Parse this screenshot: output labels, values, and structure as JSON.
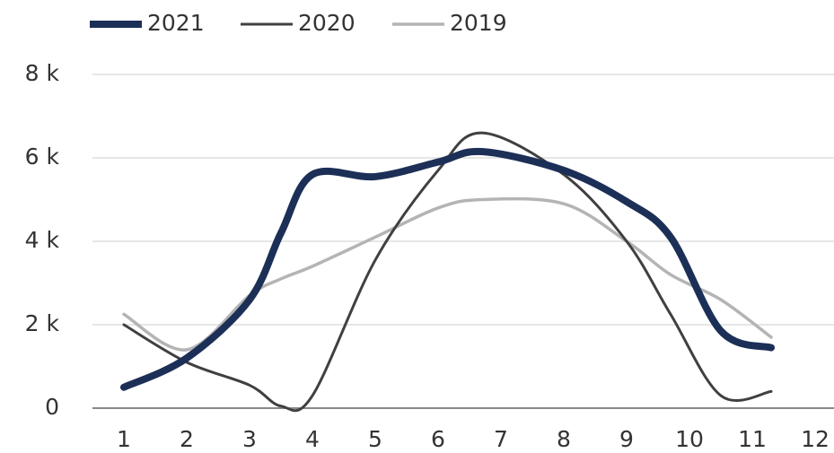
{
  "chart_data": {
    "type": "line",
    "x": [
      1,
      2,
      3,
      3.5,
      4,
      5,
      6,
      6.7,
      8,
      9,
      9.7,
      10.5,
      11.3
    ],
    "series": [
      {
        "name": "2021",
        "color": "#1c2f57",
        "values": [
          500,
          1200,
          2600,
          4200,
          5600,
          5550,
          5900,
          6150,
          5700,
          4950,
          4100,
          1850,
          1450
        ]
      },
      {
        "name": "2020",
        "color": "#404040",
        "values": [
          2000,
          1100,
          550,
          50,
          300,
          3550,
          5700,
          6600,
          5600,
          4000,
          2250,
          300,
          400
        ]
      },
      {
        "name": "2019",
        "color": "#b4b4b4",
        "values": [
          2250,
          1400,
          2700,
          3100,
          3400,
          4100,
          4800,
          5000,
          4900,
          4000,
          3200,
          2600,
          1700
        ]
      }
    ],
    "xlim": [
      0.5,
      12.3
    ],
    "xticks": [
      1,
      2,
      3,
      4,
      5,
      6,
      7,
      8,
      9,
      10,
      11,
      12
    ],
    "ylim": [
      0,
      8000
    ],
    "yticks": [
      {
        "value": 0,
        "label": "0"
      },
      {
        "value": 2000,
        "label": "2 k"
      },
      {
        "value": 4000,
        "label": "4 k"
      },
      {
        "value": 6000,
        "label": "6 k"
      },
      {
        "value": 8000,
        "label": "8 k"
      }
    ],
    "grid": true,
    "legend": "top-left"
  }
}
